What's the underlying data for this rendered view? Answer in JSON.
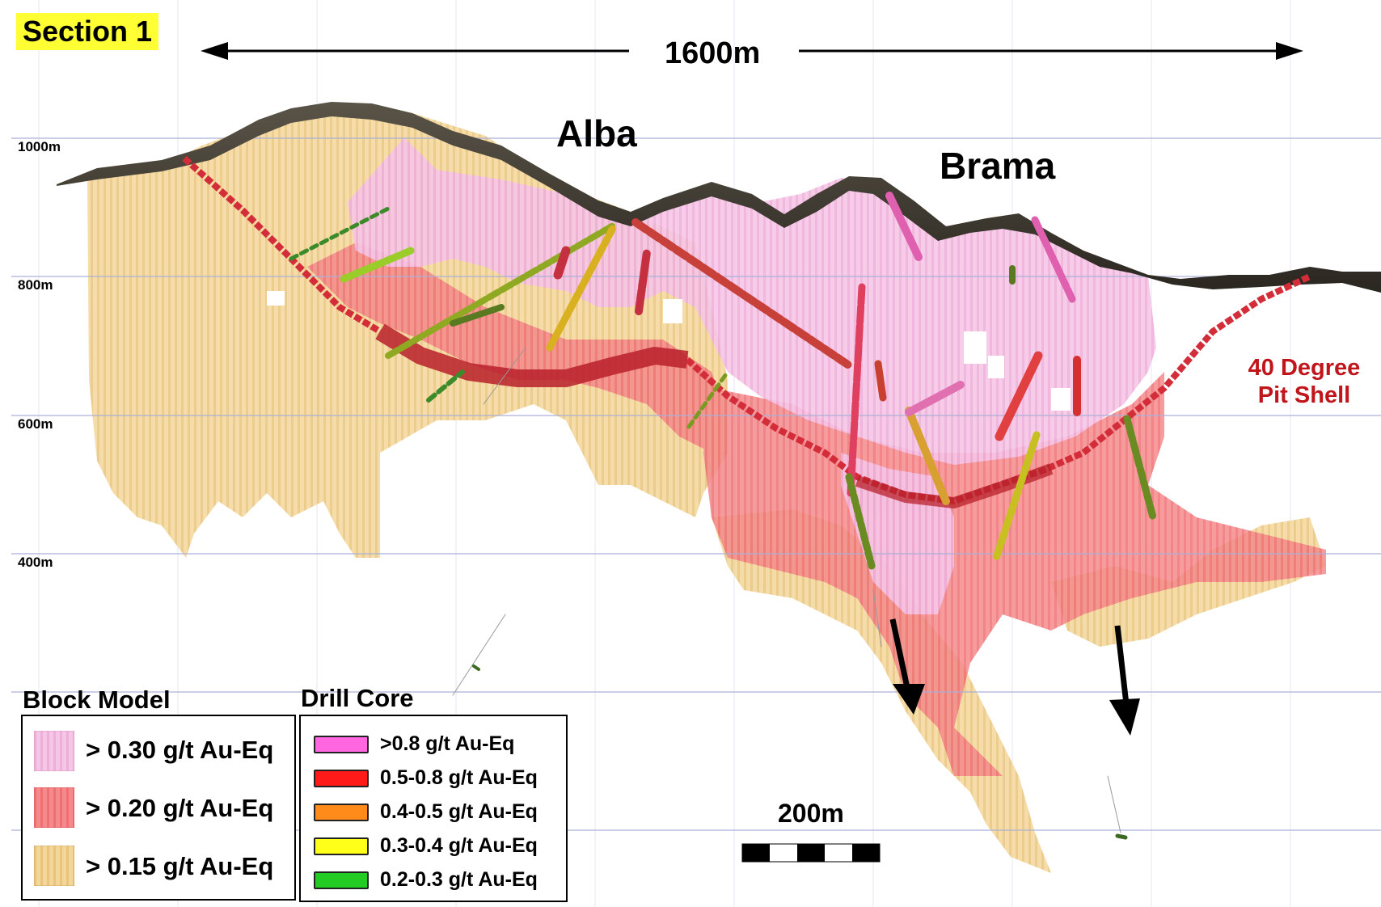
{
  "section_label": "Section 1",
  "width_annotation": "1600m",
  "area_labels": {
    "left": "Alba",
    "right": "Brama"
  },
  "elevation_labels": [
    "1000m",
    "800m",
    "600m",
    "400m"
  ],
  "pit_shell_label": {
    "line1": "40 Degree",
    "line2": "Pit Shell",
    "color": "#c0151b"
  },
  "block_model_legend": {
    "title": "Block Model",
    "items": [
      {
        "label": "> 0.30 g/t Au-Eq",
        "color": "#f4b8e0"
      },
      {
        "label": "> 0.20 g/t Au-Eq",
        "color": "#f07a7e"
      },
      {
        "label": "> 0.15 g/t Au-Eq",
        "color": "#f0cf8c"
      }
    ]
  },
  "drill_core_legend": {
    "title": "Drill Core",
    "items": [
      {
        "label": ">0.8 g/t Au-Eq",
        "color": "#ff66e0"
      },
      {
        "label": "0.5-0.8 g/t Au-Eq",
        "color": "#ff1a1a"
      },
      {
        "label": "0.4-0.5 g/t Au-Eq",
        "color": "#ff8c1a"
      },
      {
        "label": "0.3-0.4 g/t Au-Eq",
        "color": "#ffff1a"
      },
      {
        "label": "0.2-0.3 g/t Au-Eq",
        "color": "#22cc22"
      }
    ]
  },
  "scale_bar": {
    "label": "200m"
  },
  "colors": {
    "topography": "#3a3630",
    "grid": "#aab0d8",
    "pit_shell": "#d42d3a"
  }
}
